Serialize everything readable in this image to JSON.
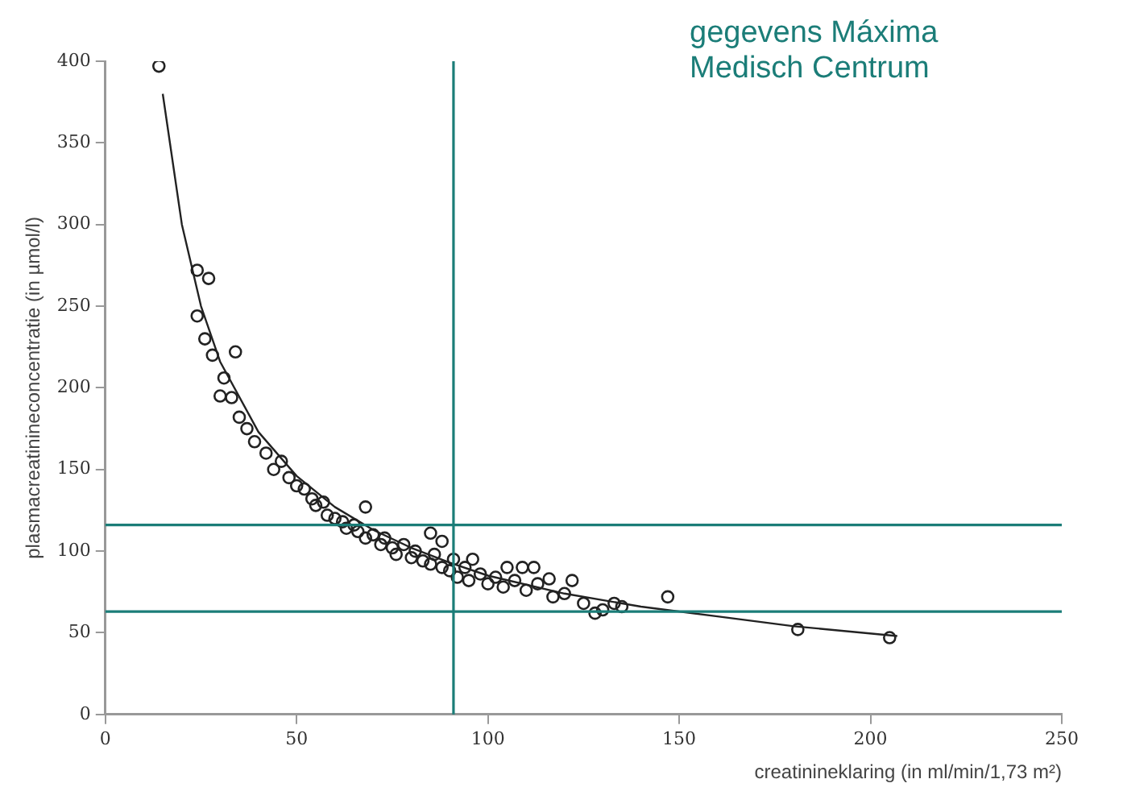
{
  "chart_data": {
    "type": "scatter",
    "xlabel": "creatinineklaring (in ml/min/1,73 m²)",
    "ylabel": "plasmacreatinineconcentratie (in µmol/l)",
    "annotations": [
      "gegevens Máxima Medisch Centrum"
    ],
    "xlim": [
      0,
      250
    ],
    "xticks": [
      0,
      50,
      100,
      150,
      200,
      250
    ],
    "ylim": [
      0,
      400
    ],
    "yticks": [
      0,
      50,
      100,
      150,
      200,
      250,
      300,
      350,
      400
    ],
    "grid": false,
    "legend": false,
    "marker": "circle",
    "series": [
      {
        "color": "#222222",
        "x": [
          14,
          24,
          27,
          24,
          26,
          28,
          34,
          31,
          30,
          33,
          35,
          37,
          39,
          42,
          46,
          44,
          48,
          50,
          52,
          54,
          55,
          57,
          58,
          60,
          62,
          63,
          65,
          66,
          68,
          68,
          70,
          72,
          73,
          75,
          76,
          78,
          80,
          81,
          83,
          85,
          85,
          86,
          88,
          88,
          90,
          91,
          92,
          94,
          95,
          96,
          98,
          100,
          102,
          104,
          105,
          107,
          109,
          110,
          112,
          113,
          116,
          117,
          120,
          122,
          125,
          128,
          130,
          133,
          135,
          147,
          181,
          205
        ],
        "values": [
          397,
          272,
          267,
          244,
          230,
          220,
          222,
          206,
          195,
          194,
          182,
          175,
          167,
          160,
          155,
          150,
          145,
          140,
          138,
          132,
          128,
          130,
          122,
          120,
          118,
          114,
          116,
          112,
          127,
          108,
          110,
          104,
          108,
          102,
          98,
          104,
          96,
          100,
          94,
          111,
          92,
          98,
          90,
          106,
          88,
          95,
          84,
          90,
          82,
          95,
          86,
          80,
          84,
          78,
          90,
          82,
          90,
          76,
          90,
          80,
          83,
          72,
          74,
          82,
          68,
          62,
          64,
          68,
          66,
          72,
          52,
          47
        ]
      },
      {
        "type": "line",
        "color": "#222222",
        "marker": "none",
        "x": [
          15,
          20,
          25,
          30,
          40,
          50,
          60,
          70,
          80,
          90,
          100,
          120,
          140,
          160,
          180,
          207
        ],
        "values": [
          380,
          300,
          250,
          216,
          173,
          146,
          127,
          113,
          102,
          93,
          85,
          74,
          66,
          60,
          54,
          48
        ]
      }
    ],
    "ref_lines": [
      {
        "axis": "x",
        "value": 91,
        "color": "#1b7d78"
      },
      {
        "axis": "y",
        "value": 116,
        "color": "#1b7d78"
      },
      {
        "axis": "y",
        "value": 63,
        "color": "#1b7d78"
      }
    ]
  }
}
